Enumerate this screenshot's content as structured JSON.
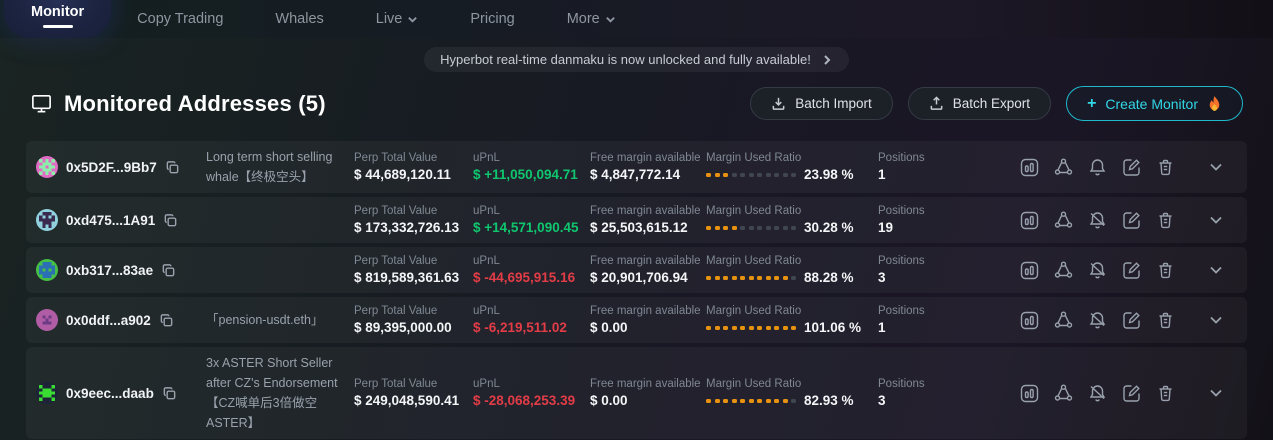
{
  "nav": {
    "items": [
      {
        "label": "Monitor",
        "active": true
      },
      {
        "label": "Copy Trading",
        "active": false
      },
      {
        "label": "Whales",
        "active": false
      },
      {
        "label": "Live",
        "active": false,
        "chevron": true
      },
      {
        "label": "Pricing",
        "active": false
      },
      {
        "label": "More",
        "active": false,
        "chevron": true
      }
    ]
  },
  "banner": {
    "text": "Hyperbot real-time danmaku is now unlocked and fully available!"
  },
  "header": {
    "title": "Monitored Addresses (5)",
    "batch_import_label": "Batch Import",
    "batch_export_label": "Batch Export",
    "create_monitor_label": "Create Monitor"
  },
  "columns": {
    "perp_total_value": "Perp Total Value",
    "upnl": "uPnL",
    "free_margin": "Free margin available",
    "margin_used_ratio": "Margin Used Ratio",
    "positions": "Positions"
  },
  "colors": {
    "accent_cyan": "#32d7e6",
    "positive_green": "#0fc66f",
    "negative_red": "#e23c47",
    "ratio_dot_filled": "#e8930f",
    "ratio_dot_empty": "#3f4650"
  },
  "rows": [
    {
      "address": "0x5D2F...9Bb7",
      "note": "Long term short selling whale【终极空头】",
      "perp_total_value": "$ 44,689,120.11",
      "upnl": "$ +11,050,094.71",
      "upnl_positive": true,
      "free_margin": "$ 4,847,772.14",
      "margin_used_ratio": "23.98 %",
      "margin_ratio_value": 23.98,
      "positions": "1",
      "alerts_muted": false,
      "avatar": {
        "bg": "#e06cc4",
        "fg": "#8deeac",
        "pattern": [
          "10101",
          "01110",
          "11011",
          "01110",
          "10101"
        ]
      }
    },
    {
      "address": "0xd475...1A91",
      "note": "",
      "perp_total_value": "$ 173,332,726.13",
      "upnl": "$ +14,571,090.45",
      "upnl_positive": true,
      "free_margin": "$ 25,503,615.12",
      "margin_used_ratio": "30.28 %",
      "margin_ratio_value": 30.28,
      "positions": "19",
      "alerts_muted": true,
      "avatar": {
        "bg": "#8fd2de",
        "fg": "#3a2a50",
        "pattern": [
          "01110",
          "10101",
          "11111",
          "01110",
          "01010"
        ]
      }
    },
    {
      "address": "0xb317...83ae",
      "note": "",
      "perp_total_value": "$ 819,589,361.63",
      "upnl": "$ -44,695,915.16",
      "upnl_positive": false,
      "free_margin": "$ 20,901,706.94",
      "margin_used_ratio": "88.28 %",
      "margin_ratio_value": 88.28,
      "positions": "3",
      "alerts_muted": true,
      "avatar": {
        "bg": "#46bf45",
        "fg": "#2b6fb5",
        "pattern": [
          "01110",
          "11111",
          "10101",
          "11111",
          "01110"
        ]
      }
    },
    {
      "address": "0x0ddf...a902",
      "note": "「pension-usdt.eth」",
      "perp_total_value": "$ 89,395,000.00",
      "upnl": "$ -6,219,511.02",
      "upnl_positive": false,
      "free_margin": "$ 0.00",
      "margin_used_ratio": "101.06 %",
      "margin_ratio_value": 101.06,
      "positions": "1",
      "alerts_muted": true,
      "avatar": {
        "bg": "#b05da5",
        "fg": "#6d3a85",
        "pattern": [
          "00000",
          "01010",
          "00100",
          "01110",
          "00000"
        ]
      }
    },
    {
      "address": "0x9eec...daab",
      "note": "3x ASTER Short Seller after CZ's Endorsement【CZ喊单后3倍做空 ASTER】",
      "perp_total_value": "$ 249,048,590.41",
      "upnl": "$ -28,068,253.39",
      "upnl_positive": false,
      "free_margin": "$ 0.00",
      "margin_used_ratio": "82.93 %",
      "margin_ratio_value": 82.93,
      "positions": "3",
      "alerts_muted": true,
      "avatar": {
        "bg": "#1e2438",
        "fg": "#3ade33",
        "pattern": [
          "10001",
          "01110",
          "11111",
          "01110",
          "10001"
        ]
      }
    }
  ],
  "ratio_dots_total": 11
}
